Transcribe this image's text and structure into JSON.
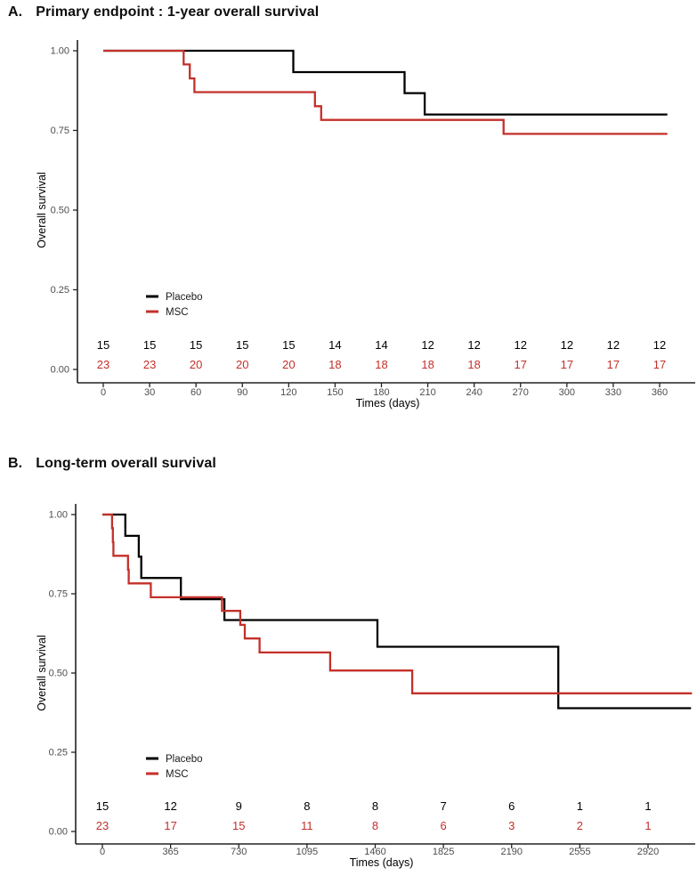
{
  "figure_title": "Kaplan-Meier overall survival curves",
  "accent_colors": {
    "placebo": "#000000",
    "msc": "#c4302a"
  },
  "chart_data": [
    {
      "type": "line",
      "subtype": "kaplan-meier-step",
      "panel_label": "A.",
      "title": "Primary endpoint : 1-year overall survival",
      "xlabel": "Times (days)",
      "ylabel": "Overall survival",
      "xlim": [
        0,
        383
      ],
      "ylim": [
        0,
        1.0
      ],
      "grid": false,
      "x_ticks": [
        0,
        30,
        60,
        90,
        120,
        150,
        180,
        210,
        240,
        270,
        300,
        330,
        360
      ],
      "y_ticks": [
        {
          "v": 1.0,
          "label": "1.00"
        },
        {
          "v": 0.75,
          "label": "0.75"
        },
        {
          "v": 0.5,
          "label": "0.50"
        },
        {
          "v": 0.25,
          "label": "0.25"
        },
        {
          "v": 0.0,
          "label": "0.00"
        }
      ],
      "legend": {
        "position": "inside-lower-left",
        "entries": [
          {
            "label": "Placebo",
            "color": "#000000"
          },
          {
            "label": "MSC",
            "color": "#c4302a"
          }
        ]
      },
      "series": [
        {
          "name": "Placebo",
          "color": "#000000",
          "points": [
            [
              0,
              1.0
            ],
            [
              123,
              1.0
            ],
            [
              123,
              0.933
            ],
            [
              195,
              0.933
            ],
            [
              195,
              0.867
            ],
            [
              208,
              0.867
            ],
            [
              208,
              0.8
            ],
            [
              365,
              0.8
            ]
          ]
        },
        {
          "name": "MSC",
          "color": "#c4302a",
          "points": [
            [
              0,
              1.0
            ],
            [
              52,
              1.0
            ],
            [
              52,
              0.957
            ],
            [
              56,
              0.957
            ],
            [
              56,
              0.913
            ],
            [
              59,
              0.913
            ],
            [
              59,
              0.87
            ],
            [
              137,
              0.87
            ],
            [
              137,
              0.826
            ],
            [
              141,
              0.826
            ],
            [
              141,
              0.783
            ],
            [
              259,
              0.783
            ],
            [
              259,
              0.739
            ],
            [
              365,
              0.739
            ]
          ]
        }
      ],
      "risk_table": [
        {
          "name": "Placebo",
          "color": "#000000",
          "values": [
            "15",
            "15",
            "15",
            "15",
            "15",
            "14",
            "14",
            "12",
            "12",
            "12",
            "12",
            "12",
            "12"
          ]
        },
        {
          "name": "MSC",
          "color": "#c4302a",
          "values": [
            "23",
            "23",
            "20",
            "20",
            "20",
            "18",
            "18",
            "18",
            "18",
            "17",
            "17",
            "17",
            "17"
          ]
        }
      ]
    },
    {
      "type": "line",
      "subtype": "kaplan-meier-step",
      "panel_label": "B.",
      "title": "Long-term overall survival",
      "xlabel": "Times (days)",
      "ylabel": "Overall survival",
      "xlim": [
        0,
        3170
      ],
      "ylim": [
        0,
        1.0
      ],
      "grid": false,
      "x_ticks": [
        0,
        365,
        730,
        1095,
        1460,
        1825,
        2190,
        2555,
        2920
      ],
      "y_ticks": [
        {
          "v": 1.0,
          "label": "1.00"
        },
        {
          "v": 0.75,
          "label": "0.75"
        },
        {
          "v": 0.5,
          "label": "0.50"
        },
        {
          "v": 0.25,
          "label": "0.25"
        },
        {
          "v": 0.0,
          "label": "0.00"
        }
      ],
      "legend": {
        "position": "inside-lower-left",
        "entries": [
          {
            "label": "Placebo",
            "color": "#000000"
          },
          {
            "label": "MSC",
            "color": "#c4302a"
          }
        ]
      },
      "series": [
        {
          "name": "Placebo",
          "color": "#000000",
          "points": [
            [
              0,
              1.0
            ],
            [
              123,
              1.0
            ],
            [
              123,
              0.933
            ],
            [
              195,
              0.933
            ],
            [
              195,
              0.867
            ],
            [
              208,
              0.867
            ],
            [
              208,
              0.8
            ],
            [
              420,
              0.8
            ],
            [
              420,
              0.733
            ],
            [
              653,
              0.733
            ],
            [
              653,
              0.667
            ],
            [
              1472,
              0.667
            ],
            [
              1472,
              0.583
            ],
            [
              2440,
              0.583
            ],
            [
              2440,
              0.389
            ],
            [
              3150,
              0.389
            ]
          ]
        },
        {
          "name": "MSC",
          "color": "#c4302a",
          "points": [
            [
              0,
              1.0
            ],
            [
              52,
              1.0
            ],
            [
              52,
              0.957
            ],
            [
              56,
              0.957
            ],
            [
              56,
              0.913
            ],
            [
              59,
              0.913
            ],
            [
              59,
              0.87
            ],
            [
              137,
              0.87
            ],
            [
              137,
              0.826
            ],
            [
              141,
              0.826
            ],
            [
              141,
              0.783
            ],
            [
              259,
              0.783
            ],
            [
              259,
              0.739
            ],
            [
              640,
              0.739
            ],
            [
              640,
              0.696
            ],
            [
              738,
              0.696
            ],
            [
              738,
              0.652
            ],
            [
              762,
              0.652
            ],
            [
              762,
              0.609
            ],
            [
              841,
              0.609
            ],
            [
              841,
              0.565
            ],
            [
              1219,
              0.565
            ],
            [
              1219,
              0.508
            ],
            [
              1658,
              0.508
            ],
            [
              1658,
              0.436
            ],
            [
              3155,
              0.436
            ]
          ]
        }
      ],
      "risk_table": [
        {
          "name": "Placebo",
          "color": "#000000",
          "values": [
            "15",
            "12",
            "9",
            "8",
            "8",
            "7",
            "6",
            "1",
            "1"
          ]
        },
        {
          "name": "MSC",
          "color": "#c4302a",
          "values": [
            "23",
            "17",
            "15",
            "11",
            "8",
            "6",
            "3",
            "2",
            "1"
          ]
        }
      ]
    }
  ]
}
